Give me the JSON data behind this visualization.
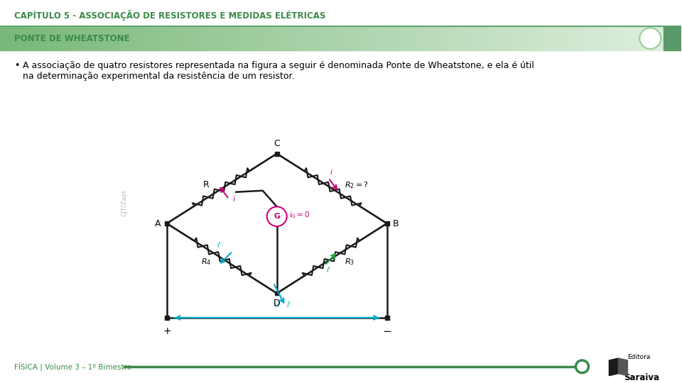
{
  "title": "CAPÍTULO 5 - ASSOCIAÇÃO DE RESISTORES E MEDIDAS ELÉTRICAS",
  "subtitle": "PONTE DE WHEATSTONE",
  "bullet_line1": "A associação de quatro resistores representada na figura a seguir é denominada Ponte de Wheatstone, e ela é útil",
  "bullet_line2": "na determinação experimental da resistência de um resistor.",
  "footer_text": "FÍSICA | Volume 3 – 1º Bimestre",
  "title_color": "#3a8a4a",
  "subtitle_color": "#3a8a4a",
  "bg_color": "#ffffff",
  "footer_line_color": "#3a8a4a",
  "circuit_color": "#1a1a1a",
  "pink_arrow_color": "#cc0077",
  "cyan_arrow_color": "#00aacc",
  "green_arrow_color": "#22aa44",
  "galvanometer_color": "#cc0077",
  "bar_green_dark": "#78b878",
  "bar_green_light": "#e0f0e0"
}
